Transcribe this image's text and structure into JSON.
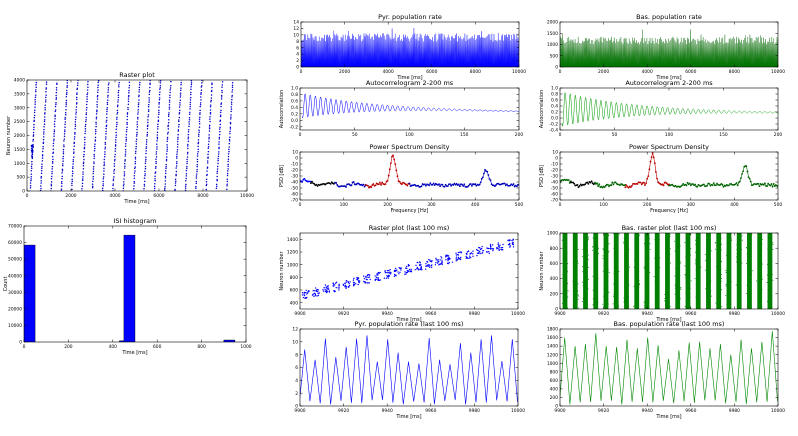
{
  "figure_title": "",
  "chart_data": [
    {
      "id": "raster",
      "type": "scatter",
      "title": "Raster plot",
      "xlabel": "Time [ms]",
      "ylabel": "Neuron number",
      "xlim": [
        0,
        10000
      ],
      "ylim": [
        0,
        4000
      ],
      "xticks": [
        0,
        2000,
        4000,
        6000,
        8000,
        10000
      ],
      "yticks": [
        0,
        500,
        1000,
        1500,
        2000,
        2500,
        3000,
        3500,
        4000
      ],
      "xticklabels": [
        "0",
        "2000",
        "4000",
        "6000",
        "8000",
        "10000"
      ],
      "yticklabels": [
        "0",
        "500",
        "1000",
        "1500",
        "2000",
        "2500",
        "3000",
        "3500",
        "4000"
      ],
      "color": "#0000cc",
      "wave_count": 20,
      "wave_period_ms": 470,
      "wave_duration_ms": 280
    },
    {
      "id": "isi",
      "type": "bar",
      "title": "ISI histogram",
      "xlabel": "Time [ms]",
      "ylabel": "Count",
      "xlim": [
        0,
        1000
      ],
      "ylim": [
        0,
        70000
      ],
      "xticks": [
        0,
        200,
        400,
        600,
        800,
        1000
      ],
      "yticks": [
        0,
        10000,
        20000,
        30000,
        40000,
        50000,
        60000,
        70000
      ],
      "xticklabels": [
        "0",
        "200",
        "400",
        "600",
        "800",
        "1000"
      ],
      "yticklabels": [
        "0",
        "10000",
        "20000",
        "30000",
        "40000",
        "50000",
        "60000",
        "70000"
      ],
      "color": "#0000ff",
      "bins": [
        {
          "x0": 0,
          "x1": 50,
          "value": 58500
        },
        {
          "x0": 430,
          "x1": 450,
          "value": 800
        },
        {
          "x0": 450,
          "x1": 500,
          "value": 64500
        },
        {
          "x0": 900,
          "x1": 950,
          "value": 1200
        }
      ]
    },
    {
      "id": "pyr_rate",
      "type": "line",
      "title": "Pyr. population rate",
      "xlabel": "Time [ms]",
      "ylabel": "",
      "xlim": [
        0,
        10000
      ],
      "ylim": [
        0,
        14
      ],
      "xticks": [
        0,
        2000,
        4000,
        6000,
        8000,
        10000
      ],
      "yticks": [
        0,
        2,
        4,
        6,
        8,
        10,
        12,
        14
      ],
      "xticklabels": [
        "0",
        "2000",
        "4000",
        "6000",
        "8000",
        "10000"
      ],
      "yticklabels": [
        "0",
        "2",
        "4",
        "6",
        "8",
        "10",
        "12",
        "14"
      ],
      "color": "#0000ff",
      "fill": "#0000ff",
      "band_low": 0.3,
      "band_high": 10.5,
      "peak_max": 12.8
    },
    {
      "id": "pyr_auto",
      "type": "line",
      "title": "Autocorrelogram 2-200 ms",
      "xlabel": "",
      "ylabel": "Autocorrelation",
      "xlim": [
        0,
        200
      ],
      "ylim": [
        -0.3,
        1.0
      ],
      "xticks": [
        0,
        50,
        100,
        150,
        200
      ],
      "yticks": [
        -0.2,
        0.0,
        0.2,
        0.4,
        0.6,
        0.8,
        1.0
      ],
      "xticklabels": [
        "0",
        "50",
        "100",
        "150",
        "200"
      ],
      "yticklabels": [
        "-0.2",
        "0.0",
        "0.2",
        "0.4",
        "0.6",
        "0.8",
        "1.0"
      ],
      "color": "#0000ff",
      "lag_range_ms": [
        2,
        200
      ],
      "period_ms": 4.7,
      "offset": 0.46,
      "amplitude": 0.4,
      "decay_ms": 55
    },
    {
      "id": "pyr_psd",
      "type": "line",
      "title": "Power Spectrum Density",
      "xlabel": "Frequency [Hz]",
      "ylabel": "PSD [dB]",
      "xlim": [
        0,
        500
      ],
      "ylim": [
        -70,
        10
      ],
      "xticks": [
        0,
        100,
        200,
        300,
        400,
        500
      ],
      "yticks": [
        -70,
        -60,
        -50,
        -40,
        -30,
        -20,
        -10,
        0,
        10
      ],
      "xticklabels": [
        "0",
        "100",
        "200",
        "300",
        "400",
        "500"
      ],
      "yticklabels": [
        "-70",
        "-60",
        "-50",
        "-40",
        "-30",
        "-20",
        "-10",
        "0",
        "10"
      ],
      "segments": [
        {
          "from": 0,
          "to": 25,
          "color": "#0000ff"
        },
        {
          "from": 25,
          "to": 80,
          "color": "#000000"
        },
        {
          "from": 80,
          "to": 150,
          "color": "#0000bb"
        },
        {
          "from": 150,
          "to": 250,
          "color": "#bb0000"
        },
        {
          "from": 250,
          "to": 500,
          "color": "#0000bb"
        }
      ],
      "peaks": [
        {
          "f": 212,
          "db": 7
        },
        {
          "f": 425,
          "db": -20
        }
      ],
      "baseline_db": -45
    },
    {
      "id": "bas_rate",
      "type": "line",
      "title": "Bas. population rate",
      "xlabel": "Time [ms]",
      "ylabel": "",
      "xlim": [
        0,
        10000
      ],
      "ylim": [
        0,
        2000
      ],
      "xticks": [
        0,
        2000,
        4000,
        6000,
        8000,
        10000
      ],
      "yticks": [
        0,
        500,
        1000,
        1500,
        2000
      ],
      "xticklabels": [
        "0",
        "2000",
        "4000",
        "6000",
        "8000",
        "10000"
      ],
      "yticklabels": [
        "0",
        "500",
        "1000",
        "1500",
        "2000"
      ],
      "color": "#006400",
      "fill": "#008000",
      "band_low": 30,
      "band_high": 1350,
      "peak_max": 1750
    },
    {
      "id": "bas_auto",
      "type": "line",
      "title": "Autocorrelogram 2-200 ms",
      "xlabel": "",
      "ylabel": "Autocorrelation",
      "xlim": [
        0,
        200
      ],
      "ylim": [
        -0.4,
        1.0
      ],
      "xticks": [
        0,
        50,
        100,
        150,
        200
      ],
      "yticks": [
        -0.4,
        -0.2,
        0.0,
        0.2,
        0.4,
        0.6,
        0.8,
        1.0
      ],
      "xticklabels": [
        "0",
        "50",
        "100",
        "150",
        "200"
      ],
      "yticklabels": [
        "-0.4",
        "-0.2",
        "0.0",
        "0.2",
        "0.4",
        "0.6",
        "0.8",
        "1.0"
      ],
      "color": "#009900",
      "lag_range_ms": [
        2,
        200
      ],
      "period_ms": 4.7,
      "offset": 0.3,
      "amplitude": 0.6,
      "decay_ms": 60
    },
    {
      "id": "bas_psd",
      "type": "line",
      "title": "Power Spectrum Density",
      "xlabel": "Frequency [Hz]",
      "ylabel": "PSD [dB]",
      "xlim": [
        0,
        500
      ],
      "ylim": [
        -70,
        10
      ],
      "xticks": [
        0,
        100,
        200,
        300,
        400,
        500
      ],
      "yticks": [
        -70,
        -60,
        -50,
        -40,
        -30,
        -20,
        -10,
        0,
        10
      ],
      "xticklabels": [
        "0",
        "100",
        "200",
        "300",
        "400",
        "500"
      ],
      "yticklabels": [
        "-70",
        "-60",
        "-50",
        "-40",
        "-30",
        "-20",
        "-10",
        "0",
        "10"
      ],
      "segments": [
        {
          "from": 0,
          "to": 25,
          "color": "#006400"
        },
        {
          "from": 25,
          "to": 80,
          "color": "#000000"
        },
        {
          "from": 80,
          "to": 150,
          "color": "#006400"
        },
        {
          "from": 150,
          "to": 250,
          "color": "#bb0000"
        },
        {
          "from": 250,
          "to": 500,
          "color": "#006400"
        }
      ],
      "peaks": [
        {
          "f": 212,
          "db": 8
        },
        {
          "f": 425,
          "db": -13
        }
      ],
      "baseline_db": -45
    },
    {
      "id": "pyr_raster_last",
      "type": "scatter",
      "title": "Raster plot (last 100 ms)",
      "xlabel": "Time [ms]",
      "ylabel": "Neuron number",
      "xlim": [
        9900,
        10000
      ],
      "ylim": [
        300,
        1500
      ],
      "xticks": [
        9900,
        9920,
        9940,
        9960,
        9980,
        10000
      ],
      "yticks": [
        400,
        600,
        800,
        1000,
        1200,
        1400
      ],
      "xticklabels": [
        "9900",
        "9920",
        "9940",
        "9960",
        "9980",
        "10000"
      ],
      "yticklabels": [
        "400",
        "600",
        "800",
        "1000",
        "1200",
        "1400"
      ],
      "color": "#0000ff",
      "start_neuron": 480,
      "end_neuron": 1330,
      "cluster_period_ms": 4.7
    },
    {
      "id": "bas_raster_last",
      "type": "scatter",
      "title": "Bas. raster plot (last 100 ms)",
      "xlabel": "Time [ms]",
      "ylabel": "Neuron number",
      "xlim": [
        9900,
        10000
      ],
      "ylim": [
        0,
        1000
      ],
      "xticks": [
        9900,
        9920,
        9940,
        9960,
        9980,
        10000
      ],
      "yticks": [
        0,
        200,
        400,
        600,
        800,
        1000
      ],
      "xticklabels": [
        "9900",
        "9920",
        "9940",
        "9960",
        "9980",
        "10000"
      ],
      "yticklabels": [
        "0",
        "200",
        "400",
        "600",
        "800",
        "1000"
      ],
      "color": "#008000",
      "stripe_period_ms": 4.7
    },
    {
      "id": "pyr_rate_last",
      "type": "line",
      "title": "Pyr. population rate (last 100 ms)",
      "xlabel": "Time [ms]",
      "ylabel": "",
      "xlim": [
        9900,
        10000
      ],
      "ylim": [
        0,
        12
      ],
      "xticks": [
        9900,
        9920,
        9940,
        9960,
        9980,
        10000
      ],
      "yticks": [
        0,
        2,
        4,
        6,
        8,
        10,
        12
      ],
      "xticklabels": [
        "9900",
        "9920",
        "9940",
        "9960",
        "9980",
        "10000"
      ],
      "yticklabels": [
        "0",
        "2",
        "4",
        "6",
        "8",
        "10",
        "12"
      ],
      "color": "#0000ff",
      "peaks": [
        8.8,
        7.2,
        10.5,
        7.6,
        9.2,
        10.5,
        11.0,
        6.9,
        10.4,
        8.3,
        6.9,
        6.6,
        10.6,
        7.2,
        6.5,
        9.8,
        8.3,
        10.4,
        11.0,
        7.0,
        10.4
      ]
    },
    {
      "id": "bas_rate_last",
      "type": "line",
      "title": "Bas. population rate (last 100 ms)",
      "xlabel": "Time [ms]",
      "ylabel": "",
      "xlim": [
        9900,
        10000
      ],
      "ylim": [
        0,
        1800
      ],
      "xticks": [
        9900,
        9920,
        9940,
        9960,
        9980,
        10000
      ],
      "yticks": [
        0,
        200,
        400,
        600,
        800,
        1000,
        1200,
        1400,
        1600,
        1800
      ],
      "xticklabels": [
        "9900",
        "9920",
        "9940",
        "9960",
        "9980",
        "10000"
      ],
      "yticklabels": [
        "0",
        "200",
        "400",
        "600",
        "800",
        "1000",
        "1200",
        "1400",
        "1600",
        "1800"
      ],
      "color": "#008800",
      "peaks": [
        1600,
        1400,
        1450,
        1700,
        1400,
        1380,
        1550,
        1350,
        1600,
        1420,
        1100,
        1300,
        1480,
        1500,
        1350,
        1450,
        1200,
        1550,
        1350,
        1500,
        1750
      ]
    }
  ]
}
